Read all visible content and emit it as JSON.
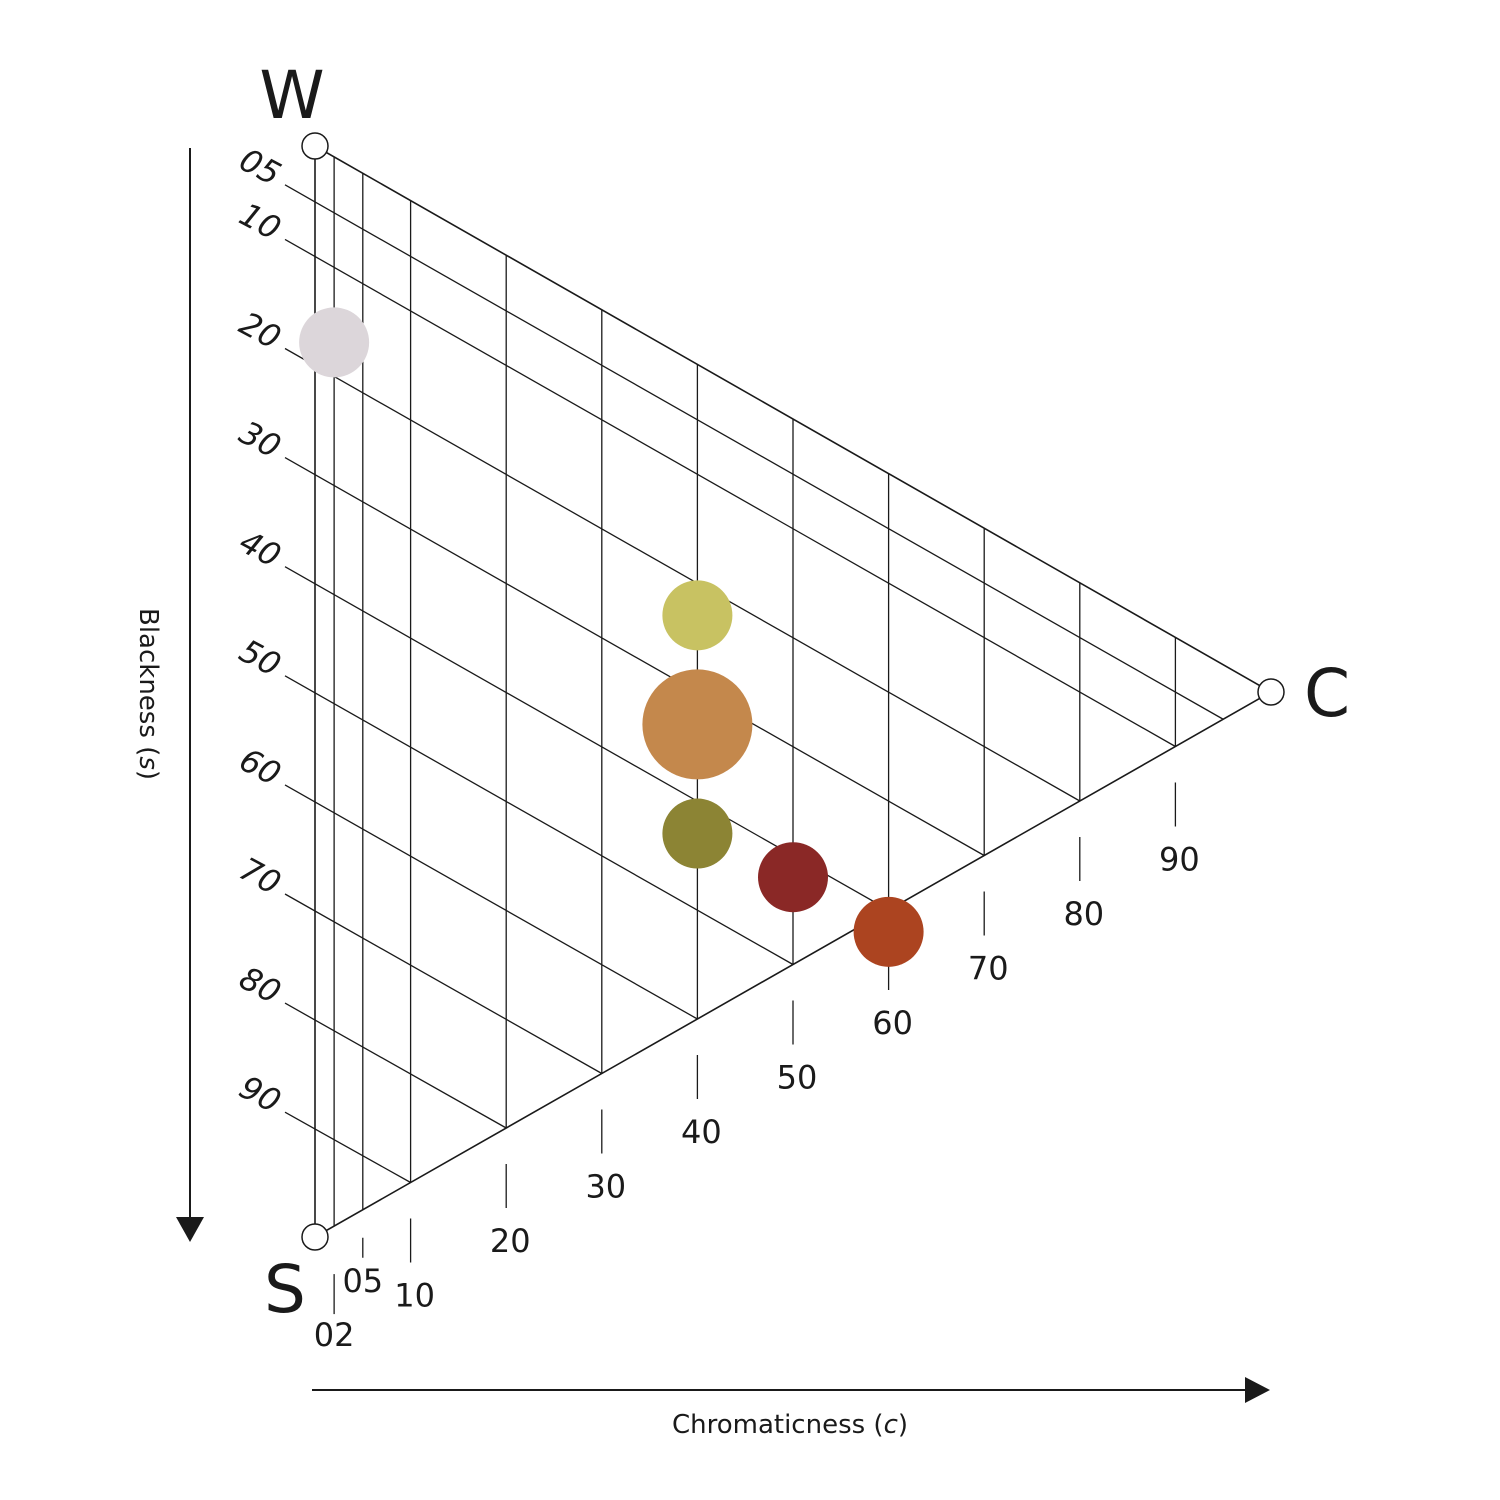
{
  "vertices": {
    "white": "W",
    "black": "S",
    "chromatic": "C"
  },
  "blackness_ticks": [
    "05",
    "10",
    "20",
    "30",
    "40",
    "50",
    "60",
    "70",
    "80",
    "90"
  ],
  "chromaticness_ticks": [
    "02",
    "05",
    "10",
    "20",
    "30",
    "40",
    "50",
    "60",
    "70",
    "80",
    "90"
  ],
  "axis_titles": {
    "vertical_prefix": "Blackness (",
    "vertical_var": "s",
    "vertical_suffix": ")",
    "horizontal_prefix": "Chromaticness (",
    "horizontal_var": "c",
    "horizontal_suffix": ")"
  },
  "color_samples": [
    {
      "blackness": 17,
      "chromaticness": 2,
      "color": "#dcd6da",
      "size": "medium"
    },
    {
      "blackness": 23,
      "chromaticness": 40,
      "color": "#c8c262",
      "size": "medium"
    },
    {
      "blackness": 33,
      "chromaticness": 40,
      "color": "#c4884c",
      "size": "large"
    },
    {
      "blackness": 43,
      "chromaticness": 40,
      "color": "#8c8434",
      "size": "medium"
    },
    {
      "blackness": 42,
      "chromaticness": 60,
      "color": "#ac4420",
      "size": "medium"
    },
    {
      "blackness": 42,
      "chromaticness": 50,
      "color": "#8a2826",
      "size": "medium"
    }
  ],
  "colors": {
    "line": "#1a1a1a",
    "background": "#ffffff"
  }
}
